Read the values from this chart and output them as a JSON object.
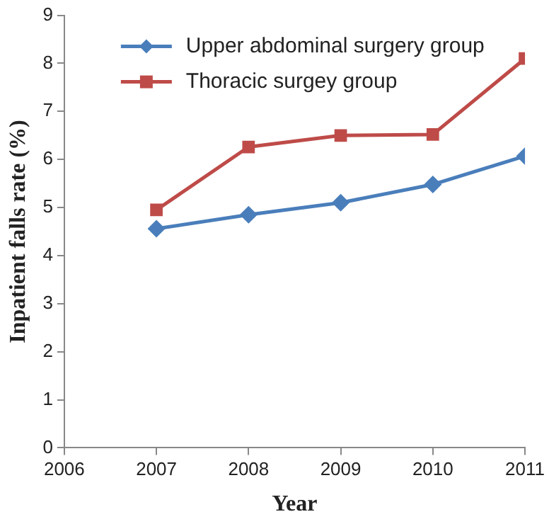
{
  "chart_data": {
    "type": "line",
    "xlabel": "Year",
    "ylabel": "Inpatient falls rate (%)",
    "x": [
      2007,
      2008,
      2009,
      2010,
      2011
    ],
    "series": [
      {
        "name": "Upper abdominal surgery group",
        "color": "#4a7ebb",
        "marker": "diamond",
        "values": [
          4.56,
          4.85,
          5.1,
          5.48,
          6.07
        ]
      },
      {
        "name": "Thoracic surgey group",
        "color": "#be4b48",
        "marker": "square",
        "values": [
          4.95,
          6.26,
          6.5,
          6.52,
          8.1
        ]
      }
    ],
    "xlim": [
      2006,
      2011
    ],
    "xticks": [
      2006,
      2007,
      2008,
      2009,
      2010,
      2011
    ],
    "ylim": [
      0,
      9
    ],
    "yticks": [
      0,
      1,
      2,
      3,
      4,
      5,
      6,
      7,
      8,
      9
    ],
    "grid": false,
    "legend": "top left",
    "line_style": "solid"
  }
}
